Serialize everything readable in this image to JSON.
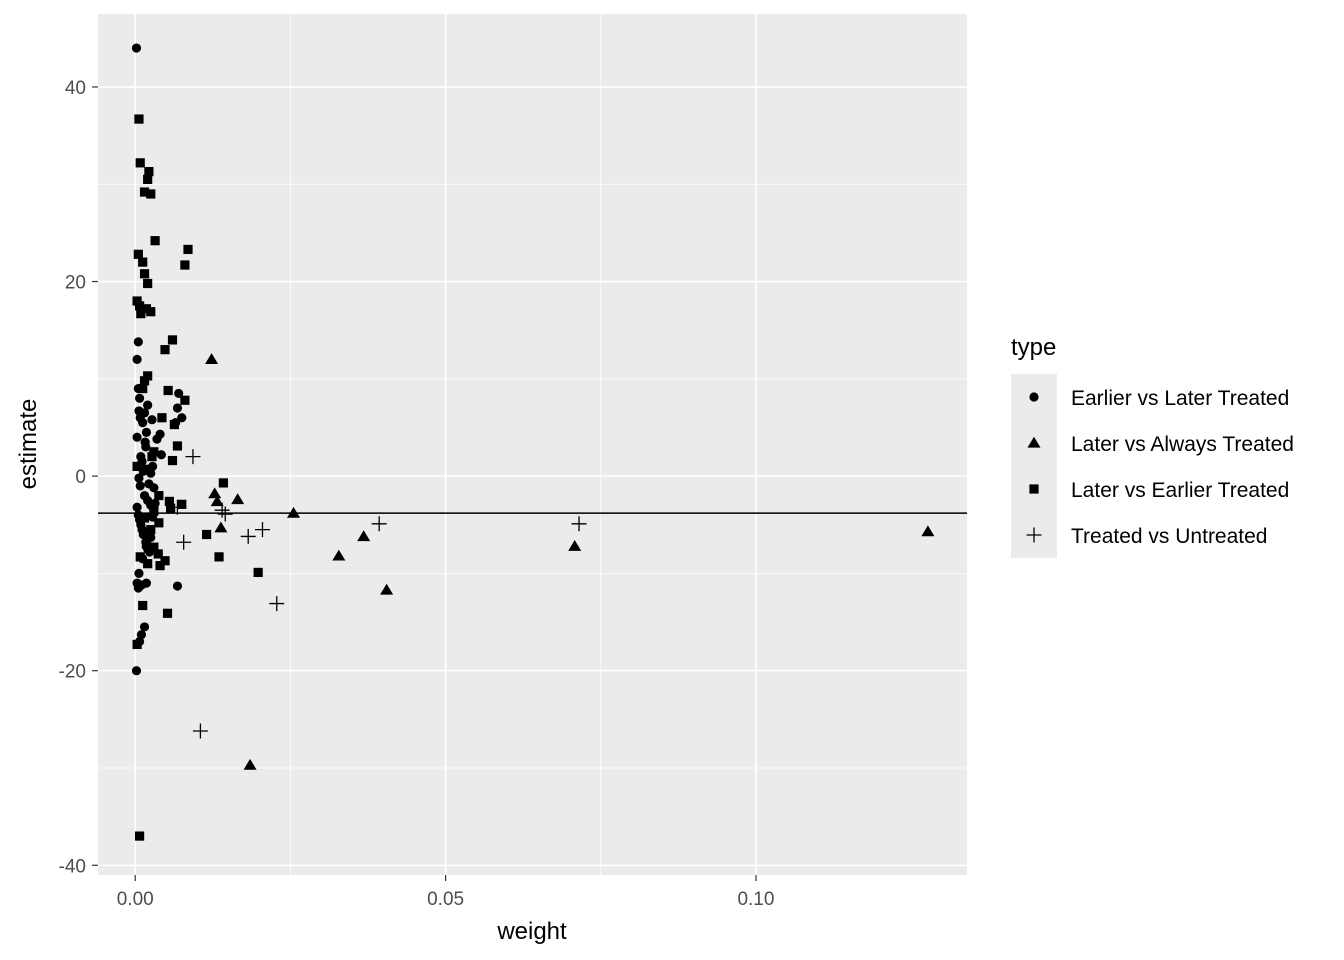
{
  "chart_data": {
    "type": "scatter",
    "title": "",
    "xlabel": "weight",
    "ylabel": "estimate",
    "xlim": [
      -0.006,
      0.134
    ],
    "ylim": [
      -41,
      47.5
    ],
    "x_ticks": [
      0.0,
      0.05,
      0.1
    ],
    "x_tick_labels": [
      "0.00",
      "0.05",
      "0.10"
    ],
    "y_ticks": [
      -40,
      -20,
      0,
      20,
      40
    ],
    "y_tick_labels": [
      "-40",
      "-20",
      "0",
      "20",
      "40"
    ],
    "grid": true,
    "hline": -3.8,
    "legend": {
      "title": "type",
      "position": "right"
    },
    "colors": {
      "panel": "#ebebeb",
      "grid": "#ffffff",
      "point": "#000000",
      "tick_text": "#4d4d4d"
    },
    "series": [
      {
        "name": "Earlier vs Later Treated",
        "shape": "circle",
        "points": [
          [
            0.0002,
            44
          ],
          [
            0.0005,
            13.8
          ],
          [
            0.0003,
            12
          ],
          [
            0.0005,
            9
          ],
          [
            0.0007,
            8
          ],
          [
            0.0006,
            6.7
          ],
          [
            0.0008,
            6
          ],
          [
            0.0003,
            4
          ],
          [
            0.0012,
            5.5
          ],
          [
            0.0015,
            6.5
          ],
          [
            0.002,
            7.3
          ],
          [
            0.0018,
            4.5
          ],
          [
            0.0016,
            3.5
          ],
          [
            0.0009,
            2
          ],
          [
            0.0011,
            1.5
          ],
          [
            0.0013,
            0.5
          ],
          [
            0.0006,
            -0.2
          ],
          [
            0.0008,
            -1
          ],
          [
            0.0015,
            -2
          ],
          [
            0.002,
            -2.5
          ],
          [
            0.0025,
            -3
          ],
          [
            0.0003,
            -3.2
          ],
          [
            0.0005,
            -4
          ],
          [
            0.0007,
            -4.5
          ],
          [
            0.0009,
            -5
          ],
          [
            0.0011,
            -5.5
          ],
          [
            0.0013,
            -6
          ],
          [
            0.0017,
            -6.8
          ],
          [
            0.002,
            -7.5
          ],
          [
            0.0012,
            -8.5
          ],
          [
            0.0006,
            -10
          ],
          [
            0.0003,
            -11
          ],
          [
            0.0005,
            -11.5
          ],
          [
            0.001,
            -11.2
          ],
          [
            0.0018,
            -11
          ],
          [
            0.0015,
            -15.5
          ],
          [
            0.001,
            -16.3
          ],
          [
            0.0007,
            -17
          ],
          [
            0.0002,
            -20
          ],
          [
            0.0035,
            3.8
          ],
          [
            0.004,
            4.3
          ],
          [
            0.0042,
            2.2
          ],
          [
            0.0068,
            7
          ],
          [
            0.007,
            8.5
          ],
          [
            0.0075,
            6
          ],
          [
            0.0065,
            5.5
          ],
          [
            0.0068,
            -11.3
          ],
          [
            0.0028,
            1
          ],
          [
            0.003,
            -1.2
          ],
          [
            0.0022,
            -0.8
          ],
          [
            0.0032,
            -2.8
          ],
          [
            0.0028,
            -4.2
          ],
          [
            0.0025,
            -6.3
          ],
          [
            0.0023,
            -7.8
          ],
          [
            0.0017,
            3
          ],
          [
            0.0025,
            0.3
          ],
          [
            0.0027,
            5.8
          ]
        ]
      },
      {
        "name": "Later vs Always Treated",
        "shape": "triangle",
        "points": [
          [
            0.0123,
            12
          ],
          [
            0.0128,
            -1.8
          ],
          [
            0.0132,
            -2.6
          ],
          [
            0.0138,
            -5.3
          ],
          [
            0.0165,
            -2.4
          ],
          [
            0.0185,
            -29.7
          ],
          [
            0.0255,
            -3.8
          ],
          [
            0.0328,
            -8.2
          ],
          [
            0.0368,
            -6.2
          ],
          [
            0.0405,
            -11.7
          ],
          [
            0.0708,
            -7.2
          ],
          [
            0.1277,
            -5.7
          ]
        ]
      },
      {
        "name": "Later vs Earlier Treated",
        "shape": "square",
        "points": [
          [
            0.0006,
            36.7
          ],
          [
            0.0008,
            32.2
          ],
          [
            0.0022,
            31.3
          ],
          [
            0.002,
            30.5
          ],
          [
            0.0015,
            29.2
          ],
          [
            0.0025,
            29
          ],
          [
            0.0032,
            24.2
          ],
          [
            0.0085,
            23.3
          ],
          [
            0.008,
            21.7
          ],
          [
            0.0005,
            22.8
          ],
          [
            0.0012,
            22
          ],
          [
            0.0015,
            20.8
          ],
          [
            0.002,
            19.8
          ],
          [
            0.0003,
            18
          ],
          [
            0.0007,
            17.5
          ],
          [
            0.0009,
            16.7
          ],
          [
            0.0018,
            17.2
          ],
          [
            0.0025,
            16.9
          ],
          [
            0.006,
            14
          ],
          [
            0.0048,
            13
          ],
          [
            0.002,
            10.3
          ],
          [
            0.0015,
            9.8
          ],
          [
            0.0012,
            9
          ],
          [
            0.0053,
            8.8
          ],
          [
            0.008,
            7.8
          ],
          [
            0.0043,
            6
          ],
          [
            0.0063,
            5.3
          ],
          [
            0.0068,
            3.1
          ],
          [
            0.003,
            2.5
          ],
          [
            0.0027,
            2
          ],
          [
            0.006,
            1.6
          ],
          [
            0.0003,
            1
          ],
          [
            0.0018,
            0.7
          ],
          [
            0.0142,
            -0.7
          ],
          [
            0.0055,
            -2.6
          ],
          [
            0.0075,
            -2.9
          ],
          [
            0.0038,
            -2
          ],
          [
            0.0057,
            -3.3
          ],
          [
            0.003,
            -3.6
          ],
          [
            0.0015,
            -4.3
          ],
          [
            0.0038,
            -4.8
          ],
          [
            0.0115,
            -6
          ],
          [
            0.0025,
            -5.5
          ],
          [
            0.0018,
            -7
          ],
          [
            0.003,
            -7.3
          ],
          [
            0.0037,
            -8
          ],
          [
            0.0048,
            -8.7
          ],
          [
            0.004,
            -9.2
          ],
          [
            0.0135,
            -8.3
          ],
          [
            0.0008,
            -8.3
          ],
          [
            0.002,
            -9
          ],
          [
            0.0198,
            -9.9
          ],
          [
            0.0012,
            -13.3
          ],
          [
            0.0052,
            -14.1
          ],
          [
            0.0003,
            -17.3
          ],
          [
            0.0007,
            -37
          ]
        ]
      },
      {
        "name": "Treated vs Untreated",
        "shape": "plus",
        "points": [
          [
            0.0093,
            2
          ],
          [
            0.0068,
            -3.2
          ],
          [
            0.014,
            -3.5
          ],
          [
            0.0145,
            -3.9
          ],
          [
            0.0078,
            -6.8
          ],
          [
            0.0182,
            -6.2
          ],
          [
            0.0205,
            -5.5
          ],
          [
            0.0393,
            -4.9
          ],
          [
            0.0715,
            -4.9
          ],
          [
            0.0228,
            -13.1
          ],
          [
            0.0105,
            -26.2
          ]
        ]
      }
    ]
  }
}
